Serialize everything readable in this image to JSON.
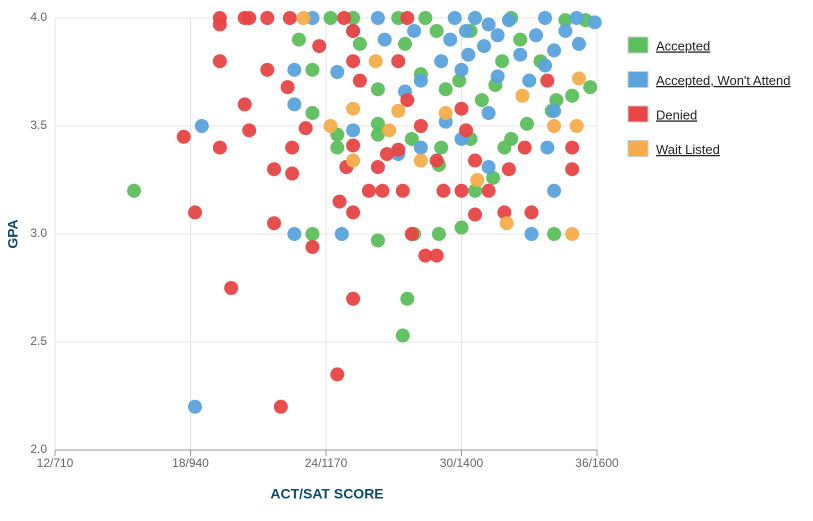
{
  "chart_data": {
    "type": "scatter",
    "x_label": "ACT/SAT SCORE",
    "y_label": "GPA",
    "xlim": [
      12,
      36
    ],
    "ylim": [
      2,
      4
    ],
    "xticks": [
      {
        "value": 12,
        "label": "12/710"
      },
      {
        "value": 18,
        "label": "18/940"
      },
      {
        "value": 24,
        "label": "24/1170"
      },
      {
        "value": 30,
        "label": "30/1400"
      },
      {
        "value": 36,
        "label": "36/1600"
      }
    ],
    "yticks": [
      {
        "value": 2,
        "label": "2.0"
      },
      2.5,
      {
        "value": 3,
        "label": "3.0"
      },
      3.5,
      {
        "value": 4,
        "label": "4.0"
      }
    ],
    "grid": true,
    "legend": "right",
    "series": [
      {
        "name": "Accepted",
        "color": "#5cbf5c",
        "x": [
          15.5,
          27.4,
          27.6,
          26.3,
          23.4,
          27.9,
          29.0,
          30.0,
          24.5,
          24.5,
          26.3,
          26.3,
          27.8,
          29.0,
          30.6,
          31.4,
          31.9,
          32.2,
          32.9,
          34.2,
          34.9,
          35.7,
          23.4,
          23.4,
          24.2,
          25.2,
          27.2,
          28.4,
          28.9,
          22.8,
          25.5,
          26.3,
          27.5,
          28.2,
          29.3,
          29.9,
          30.4,
          30.9,
          31.5,
          31.8,
          32.6,
          33.5,
          34.0,
          34.6,
          35.5,
          32.2,
          30.4,
          34.1,
          29.1
        ],
        "y": [
          3.2,
          2.53,
          2.7,
          2.97,
          3.0,
          3.0,
          3.0,
          3.03,
          3.4,
          3.46,
          3.51,
          3.46,
          3.44,
          3.32,
          3.2,
          3.26,
          3.4,
          3.44,
          3.51,
          3.62,
          3.64,
          3.68,
          3.76,
          3.56,
          4.0,
          4.0,
          4.0,
          4.0,
          3.94,
          3.9,
          3.88,
          3.67,
          3.88,
          3.74,
          3.67,
          3.71,
          3.44,
          3.62,
          3.69,
          3.8,
          3.9,
          3.8,
          3.57,
          3.99,
          3.99,
          4.0,
          3.94,
          3.0,
          3.4
        ]
      },
      {
        "name": "Accepted, Won't Attend",
        "color": "#5aa3dc",
        "x": [
          18.2,
          18.5,
          22.6,
          22.6,
          22.6,
          24.7,
          24.5,
          25.2,
          25.2,
          23.4,
          26.3,
          26.6,
          27.2,
          27.5,
          28.2,
          28.2,
          29.3,
          30.0,
          31.2,
          31.2,
          33.1,
          33.8,
          34.1,
          29.7,
          30.2,
          30.6,
          31.2,
          29.5,
          30.3,
          31.0,
          31.6,
          32.1,
          32.6,
          33.3,
          33.7,
          34.1,
          34.6,
          35.2,
          35.9,
          35.1,
          30.0,
          31.6,
          33.0,
          34.1,
          29.1,
          27.9,
          33.7
        ],
        "y": [
          2.2,
          3.5,
          3.0,
          3.6,
          3.76,
          3.0,
          3.75,
          3.48,
          3.94,
          4.0,
          4.0,
          3.9,
          3.37,
          3.66,
          3.4,
          3.71,
          3.52,
          3.44,
          3.31,
          3.56,
          3.0,
          3.4,
          3.2,
          4.0,
          3.94,
          4.0,
          3.97,
          3.9,
          3.83,
          3.87,
          3.92,
          3.99,
          3.83,
          3.92,
          4.0,
          3.85,
          3.94,
          3.88,
          3.98,
          4.0,
          3.76,
          3.73,
          3.71,
          3.57,
          3.8,
          3.94,
          3.78
        ]
      },
      {
        "name": "Denied",
        "color": "#e84545",
        "x": [
          17.7,
          18.2,
          19.8,
          19.3,
          19.3,
          19.3,
          19.3,
          20.4,
          20.6,
          21.4,
          20.4,
          20.6,
          21.4,
          21.7,
          21.7,
          22.0,
          22.3,
          22.5,
          22.5,
          23.1,
          23.4,
          23.7,
          24.5,
          24.6,
          25.2,
          25.2,
          25.2,
          25.2,
          25.2,
          25.5,
          24.9,
          25.9,
          26.3,
          26.5,
          26.7,
          27.2,
          27.2,
          27.4,
          27.8,
          28.4,
          28.9,
          27.6,
          28.2,
          28.9,
          29.2,
          30.0,
          30.0,
          30.6,
          30.6,
          31.2,
          31.9,
          32.1,
          32.8,
          33.1,
          33.8,
          34.9,
          34.9,
          30.2,
          27.6,
          24.8,
          22.4
        ],
        "y": [
          3.45,
          3.1,
          2.75,
          4.0,
          3.97,
          3.8,
          3.4,
          4.0,
          4.0,
          4.0,
          3.6,
          3.48,
          3.76,
          3.3,
          3.05,
          2.2,
          3.68,
          3.4,
          3.28,
          3.49,
          2.94,
          3.87,
          2.35,
          3.15,
          2.7,
          3.1,
          3.41,
          3.8,
          3.94,
          3.71,
          3.31,
          3.2,
          3.31,
          3.2,
          3.37,
          3.8,
          3.39,
          3.2,
          3.0,
          2.9,
          2.9,
          3.62,
          3.5,
          3.34,
          3.2,
          3.2,
          3.58,
          3.09,
          3.34,
          3.2,
          3.1,
          3.3,
          3.4,
          3.1,
          3.71,
          3.4,
          3.3,
          3.48,
          4.0,
          4.0,
          4.0
        ]
      },
      {
        "name": "Wait Listed",
        "color": "#f5ad4b",
        "x": [
          23.0,
          24.2,
          25.2,
          26.2,
          26.8,
          27.2,
          29.3,
          28.2,
          32.0,
          34.1,
          34.9,
          35.1,
          35.2,
          25.2,
          30.7,
          32.7
        ],
        "y": [
          4.0,
          3.5,
          3.58,
          3.8,
          3.48,
          3.57,
          3.56,
          3.34,
          3.05,
          3.5,
          3.0,
          3.5,
          3.72,
          3.34,
          3.25,
          3.64
        ]
      }
    ]
  }
}
